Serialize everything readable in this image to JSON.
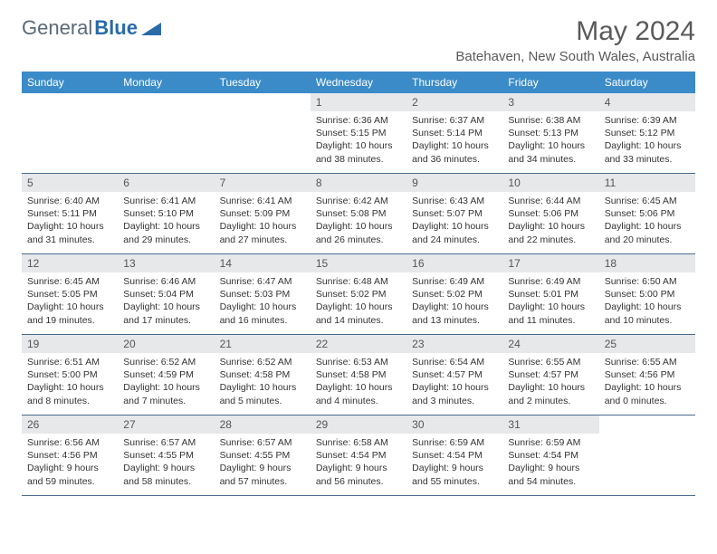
{
  "logo": {
    "text1": "General",
    "text2": "Blue"
  },
  "title": "May 2024",
  "location": "Batehaven, New South Wales, Australia",
  "colors": {
    "header_bg": "#3b8bc9",
    "daynum_bg": "#e6e8ea",
    "row_border": "#4a6a8a",
    "logo_grey": "#5a6a78",
    "logo_blue": "#2a6aa8"
  },
  "day_names": [
    "Sunday",
    "Monday",
    "Tuesday",
    "Wednesday",
    "Thursday",
    "Friday",
    "Saturday"
  ],
  "weeks": [
    [
      {
        "n": "",
        "sr": "",
        "ss": "",
        "dl": "",
        "empty": true
      },
      {
        "n": "",
        "sr": "",
        "ss": "",
        "dl": "",
        "empty": true
      },
      {
        "n": "",
        "sr": "",
        "ss": "",
        "dl": "",
        "empty": true
      },
      {
        "n": "1",
        "sr": "Sunrise: 6:36 AM",
        "ss": "Sunset: 5:15 PM",
        "dl": "Daylight: 10 hours and 38 minutes."
      },
      {
        "n": "2",
        "sr": "Sunrise: 6:37 AM",
        "ss": "Sunset: 5:14 PM",
        "dl": "Daylight: 10 hours and 36 minutes."
      },
      {
        "n": "3",
        "sr": "Sunrise: 6:38 AM",
        "ss": "Sunset: 5:13 PM",
        "dl": "Daylight: 10 hours and 34 minutes."
      },
      {
        "n": "4",
        "sr": "Sunrise: 6:39 AM",
        "ss": "Sunset: 5:12 PM",
        "dl": "Daylight: 10 hours and 33 minutes."
      }
    ],
    [
      {
        "n": "5",
        "sr": "Sunrise: 6:40 AM",
        "ss": "Sunset: 5:11 PM",
        "dl": "Daylight: 10 hours and 31 minutes."
      },
      {
        "n": "6",
        "sr": "Sunrise: 6:41 AM",
        "ss": "Sunset: 5:10 PM",
        "dl": "Daylight: 10 hours and 29 minutes."
      },
      {
        "n": "7",
        "sr": "Sunrise: 6:41 AM",
        "ss": "Sunset: 5:09 PM",
        "dl": "Daylight: 10 hours and 27 minutes."
      },
      {
        "n": "8",
        "sr": "Sunrise: 6:42 AM",
        "ss": "Sunset: 5:08 PM",
        "dl": "Daylight: 10 hours and 26 minutes."
      },
      {
        "n": "9",
        "sr": "Sunrise: 6:43 AM",
        "ss": "Sunset: 5:07 PM",
        "dl": "Daylight: 10 hours and 24 minutes."
      },
      {
        "n": "10",
        "sr": "Sunrise: 6:44 AM",
        "ss": "Sunset: 5:06 PM",
        "dl": "Daylight: 10 hours and 22 minutes."
      },
      {
        "n": "11",
        "sr": "Sunrise: 6:45 AM",
        "ss": "Sunset: 5:06 PM",
        "dl": "Daylight: 10 hours and 20 minutes."
      }
    ],
    [
      {
        "n": "12",
        "sr": "Sunrise: 6:45 AM",
        "ss": "Sunset: 5:05 PM",
        "dl": "Daylight: 10 hours and 19 minutes."
      },
      {
        "n": "13",
        "sr": "Sunrise: 6:46 AM",
        "ss": "Sunset: 5:04 PM",
        "dl": "Daylight: 10 hours and 17 minutes."
      },
      {
        "n": "14",
        "sr": "Sunrise: 6:47 AM",
        "ss": "Sunset: 5:03 PM",
        "dl": "Daylight: 10 hours and 16 minutes."
      },
      {
        "n": "15",
        "sr": "Sunrise: 6:48 AM",
        "ss": "Sunset: 5:02 PM",
        "dl": "Daylight: 10 hours and 14 minutes."
      },
      {
        "n": "16",
        "sr": "Sunrise: 6:49 AM",
        "ss": "Sunset: 5:02 PM",
        "dl": "Daylight: 10 hours and 13 minutes."
      },
      {
        "n": "17",
        "sr": "Sunrise: 6:49 AM",
        "ss": "Sunset: 5:01 PM",
        "dl": "Daylight: 10 hours and 11 minutes."
      },
      {
        "n": "18",
        "sr": "Sunrise: 6:50 AM",
        "ss": "Sunset: 5:00 PM",
        "dl": "Daylight: 10 hours and 10 minutes."
      }
    ],
    [
      {
        "n": "19",
        "sr": "Sunrise: 6:51 AM",
        "ss": "Sunset: 5:00 PM",
        "dl": "Daylight: 10 hours and 8 minutes."
      },
      {
        "n": "20",
        "sr": "Sunrise: 6:52 AM",
        "ss": "Sunset: 4:59 PM",
        "dl": "Daylight: 10 hours and 7 minutes."
      },
      {
        "n": "21",
        "sr": "Sunrise: 6:52 AM",
        "ss": "Sunset: 4:58 PM",
        "dl": "Daylight: 10 hours and 5 minutes."
      },
      {
        "n": "22",
        "sr": "Sunrise: 6:53 AM",
        "ss": "Sunset: 4:58 PM",
        "dl": "Daylight: 10 hours and 4 minutes."
      },
      {
        "n": "23",
        "sr": "Sunrise: 6:54 AM",
        "ss": "Sunset: 4:57 PM",
        "dl": "Daylight: 10 hours and 3 minutes."
      },
      {
        "n": "24",
        "sr": "Sunrise: 6:55 AM",
        "ss": "Sunset: 4:57 PM",
        "dl": "Daylight: 10 hours and 2 minutes."
      },
      {
        "n": "25",
        "sr": "Sunrise: 6:55 AM",
        "ss": "Sunset: 4:56 PM",
        "dl": "Daylight: 10 hours and 0 minutes."
      }
    ],
    [
      {
        "n": "26",
        "sr": "Sunrise: 6:56 AM",
        "ss": "Sunset: 4:56 PM",
        "dl": "Daylight: 9 hours and 59 minutes."
      },
      {
        "n": "27",
        "sr": "Sunrise: 6:57 AM",
        "ss": "Sunset: 4:55 PM",
        "dl": "Daylight: 9 hours and 58 minutes."
      },
      {
        "n": "28",
        "sr": "Sunrise: 6:57 AM",
        "ss": "Sunset: 4:55 PM",
        "dl": "Daylight: 9 hours and 57 minutes."
      },
      {
        "n": "29",
        "sr": "Sunrise: 6:58 AM",
        "ss": "Sunset: 4:54 PM",
        "dl": "Daylight: 9 hours and 56 minutes."
      },
      {
        "n": "30",
        "sr": "Sunrise: 6:59 AM",
        "ss": "Sunset: 4:54 PM",
        "dl": "Daylight: 9 hours and 55 minutes."
      },
      {
        "n": "31",
        "sr": "Sunrise: 6:59 AM",
        "ss": "Sunset: 4:54 PM",
        "dl": "Daylight: 9 hours and 54 minutes."
      },
      {
        "n": "",
        "sr": "",
        "ss": "",
        "dl": "",
        "empty": true
      }
    ]
  ]
}
